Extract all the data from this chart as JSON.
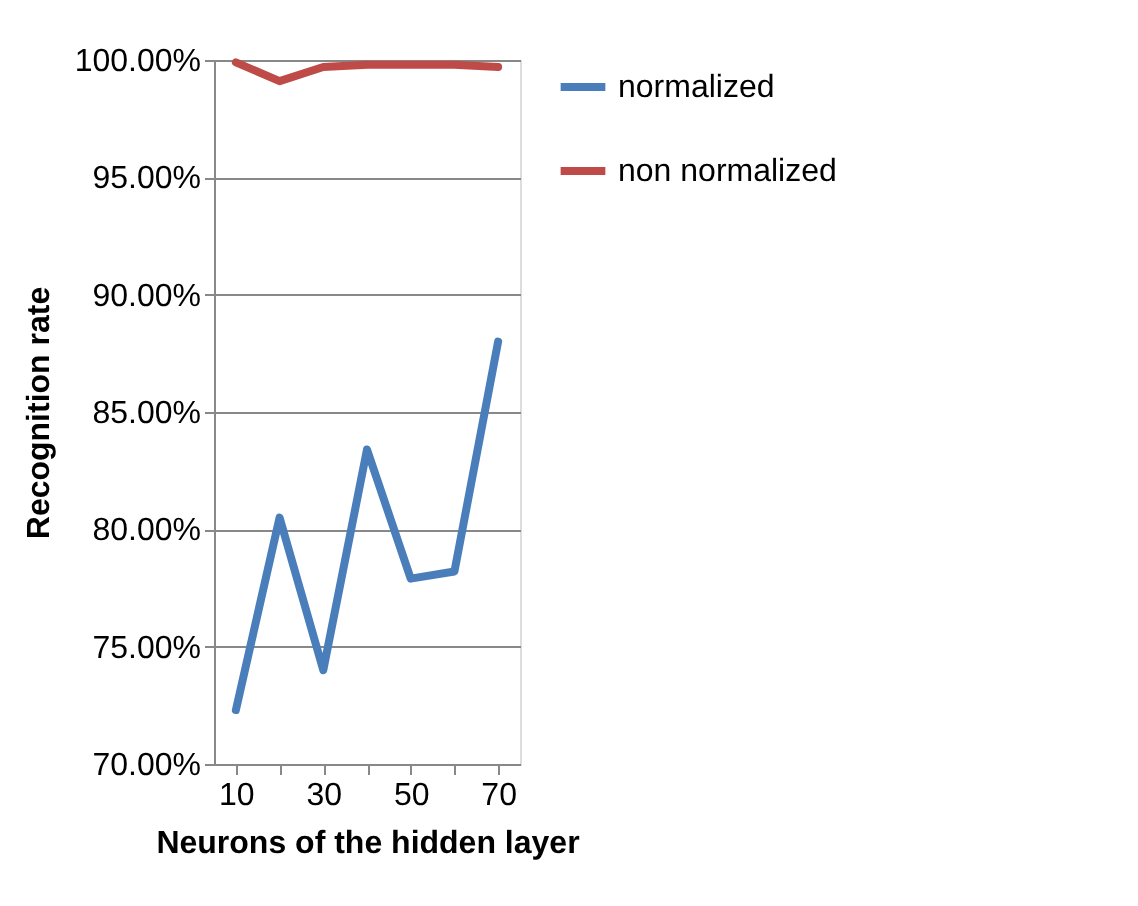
{
  "chart_data": {
    "type": "line",
    "xlabel": "Neurons of the hidden layer",
    "ylabel": "Recognition rate",
    "categories": [
      "10",
      null,
      "30",
      null,
      "50",
      null,
      "70"
    ],
    "series": [
      {
        "name": "normalized",
        "color": "#4a7ebb",
        "values": [
          72.3,
          80.5,
          74.0,
          83.4,
          77.9,
          78.2,
          88.0
        ]
      },
      {
        "name": "non normalized",
        "color": "#be4b48",
        "values": [
          99.9,
          99.1,
          99.7,
          99.8,
          99.8,
          99.8,
          99.7
        ]
      }
    ],
    "ylim": [
      70,
      100
    ],
    "yticks": [
      {
        "value": 70,
        "label": "70.00%"
      },
      {
        "value": 75,
        "label": "75.00%"
      },
      {
        "value": 80,
        "label": "80.00%"
      },
      {
        "value": 85,
        "label": "85.00%"
      },
      {
        "value": 90,
        "label": "90.00%"
      },
      {
        "value": 95,
        "label": "95.00%"
      },
      {
        "value": 100,
        "label": "100.00%"
      }
    ],
    "grid": "y",
    "legend": "right",
    "marker": "none",
    "line_style": "solid"
  }
}
